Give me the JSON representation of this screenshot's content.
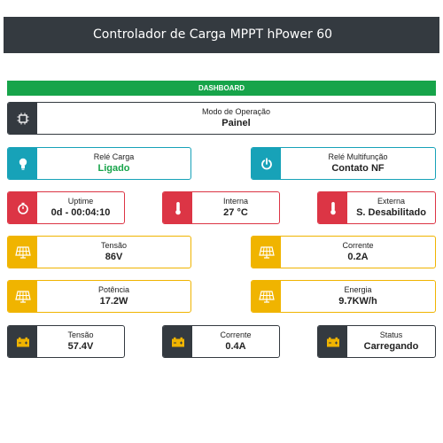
{
  "header": {
    "title": "Controlador de Carga MPPT hPower 60"
  },
  "dashboard": {
    "label": "DASHBOARD"
  },
  "modo": {
    "label": "Modo de Operação",
    "value": "Painel",
    "icon": "chip-icon"
  },
  "rele_carga": {
    "label": "Relé Carga",
    "value": "Ligado",
    "icon": "bulb-icon",
    "value_color": "#17a44a"
  },
  "rele_multi": {
    "label": "Relé Multifunção",
    "value": "Contato NF",
    "icon": "power-icon"
  },
  "uptime": {
    "label": "Uptime",
    "value": "0d - 00:04:10",
    "icon": "stopwatch-icon"
  },
  "interna": {
    "label": "Interna",
    "value": "27 °C",
    "icon": "thermometer-icon"
  },
  "externa": {
    "label": "Externa",
    "value": "S. Desabilitado",
    "icon": "thermometer-icon"
  },
  "painel_tensao": {
    "label": "Tensão",
    "value": "86V",
    "icon": "solar-panel-icon"
  },
  "painel_corrente": {
    "label": "Corrente",
    "value": "0.2A",
    "icon": "solar-panel-icon"
  },
  "potencia": {
    "label": "Potência",
    "value": "17.2W",
    "icon": "solar-panel-icon"
  },
  "energia": {
    "label": "Energia",
    "value": "9.7KW/h",
    "icon": "solar-panel-icon"
  },
  "bat_tensao": {
    "label": "Tensão",
    "value": "57.4V",
    "icon": "battery-icon"
  },
  "bat_corrente": {
    "label": "Corrente",
    "value": "0.4A",
    "icon": "battery-icon"
  },
  "bat_status": {
    "label": "Status",
    "value": "Carregando",
    "icon": "battery-icon"
  },
  "colors": {
    "dark": "#343a40",
    "green": "#17a44a",
    "cyan": "#17a2b8",
    "red": "#dc3545",
    "yellow": "#f0b400"
  }
}
